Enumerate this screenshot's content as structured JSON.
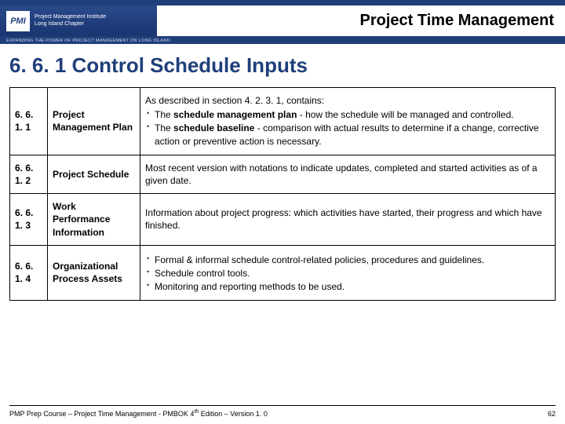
{
  "header": {
    "logo_abbrev": "PMI",
    "logo_line1": "Project Management Institute",
    "logo_line2": "Long Island Chapter",
    "subbar": "EXPANDING THE POWER OF PROJECT MANAGEMENT ON LONG ISLAND",
    "slide_title": "Project Time Management"
  },
  "section_title": "6. 6. 1 Control Schedule Inputs",
  "rows": [
    {
      "num": "6. 6. 1. 1",
      "name": "Project Management Plan",
      "intro": "As described in section 4. 2. 3. 1, contains:",
      "bullets_html": [
        "The <b>schedule management plan</b> - how the schedule will be managed and controlled.",
        "The <b>schedule baseline</b> - comparison with actual results to determine if a change, corrective action or preventive action is necessary."
      ]
    },
    {
      "num": "6. 6. 1. 2",
      "name": "Project Schedule",
      "text": "Most recent version with notations to indicate updates, completed and started activities as of a given date."
    },
    {
      "num": "6. 6. 1. 3",
      "name": "Work Performance Information",
      "text": "Information about project progress: which activities have started, their progress and which have finished."
    },
    {
      "num": "6. 6. 1. 4",
      "name": "Organizational Process Assets",
      "bullets_html": [
        "Formal & informal schedule control-related policies, procedures and guidelines.",
        "Schedule control tools.",
        "Monitoring and reporting methods to be used."
      ]
    }
  ],
  "footer": {
    "left_html": "PMP Prep Course – Project Time Management - PMBOK 4<sup>th</sup> Edition – Version 1. 0",
    "page": "62"
  },
  "colors": {
    "brand": "#1f3f7a",
    "text": "#000000",
    "background": "#ffffff"
  }
}
